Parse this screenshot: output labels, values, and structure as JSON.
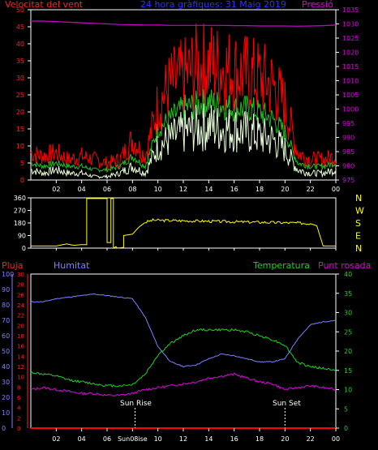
{
  "chart_data": [
    {
      "type": "line",
      "title": "24 hora gràfiques: 31 Maig 2019",
      "ylabel_left": "Velocitat del vent",
      "ylabel_right": "Pressió",
      "y_left_ticks": [
        0,
        5,
        10,
        15,
        20,
        25,
        30,
        35,
        40,
        45,
        50
      ],
      "y_right_ticks": [
        975,
        980,
        985,
        990,
        995,
        1000,
        1005,
        1010,
        1015,
        1020,
        1025,
        1030,
        1035
      ],
      "x_ticks": [
        "02",
        "04",
        "06",
        "08",
        "10",
        "12",
        "14",
        "16",
        "18",
        "20",
        "22",
        "00"
      ],
      "ylim_left": [
        0,
        50
      ],
      "ylim_right": [
        975,
        1035
      ],
      "x_hours": [
        0,
        1,
        2,
        3,
        4,
        5,
        6,
        7,
        8,
        9,
        10,
        11,
        12,
        13,
        14,
        15,
        16,
        17,
        18,
        19,
        20,
        21,
        22,
        23,
        24
      ],
      "series": [
        {
          "name": "gust",
          "color": "#ff0000",
          "values": [
            8,
            7,
            8,
            6,
            7,
            6,
            5,
            6,
            12,
            7,
            22,
            28,
            30,
            33,
            34,
            33,
            32,
            31,
            30,
            28,
            22,
            8,
            6,
            6,
            7
          ]
        },
        {
          "name": "average",
          "color": "#20c020",
          "values": [
            5,
            4,
            5,
            4,
            4,
            3,
            3,
            4,
            7,
            4,
            15,
            18,
            21,
            22,
            23,
            22,
            21,
            21,
            20,
            18,
            14,
            5,
            4,
            4,
            5
          ]
        },
        {
          "name": "speed",
          "color": "#e8ffd8",
          "values": [
            3,
            2,
            3,
            2,
            2,
            1,
            1,
            2,
            4,
            2,
            10,
            12,
            14,
            15,
            16,
            15,
            15,
            14,
            13,
            12,
            9,
            3,
            2,
            2,
            3
          ]
        },
        {
          "name": "pressure",
          "color": "#cc00cc",
          "values": [
            1031,
            1031,
            1030.8,
            1030.6,
            1030.4,
            1030.2,
            1030,
            1029.8,
            1029.7,
            1029.6,
            1029.6,
            1029.5,
            1029.5,
            1029.5,
            1029.5,
            1029.5,
            1029.4,
            1029.4,
            1029.3,
            1029.3,
            1029.3,
            1029.2,
            1029.3,
            1029.4,
            1029.6
          ]
        }
      ]
    },
    {
      "type": "line",
      "y_ticks": [
        0,
        90,
        180,
        270,
        360
      ],
      "compass_labels": [
        "N",
        "W",
        "S",
        "E",
        "N"
      ],
      "ylim": [
        0,
        360
      ],
      "x_ticks": [
        "02",
        "04",
        "06",
        "08",
        "10",
        "12",
        "14",
        "16",
        "18",
        "20",
        "22",
        "00"
      ],
      "series": [
        {
          "name": "direction",
          "color": "#ffff00",
          "x": [
            0,
            2,
            2.8,
            3.4,
            4,
            4.4,
            4.4,
            6.0,
            6.0,
            6.3,
            6.3,
            6.5,
            6.5,
            6.7,
            6.8,
            7.3,
            7.3,
            8.0,
            8.5,
            9.0,
            9.6,
            21,
            22,
            22.5,
            23,
            24
          ],
          "values": [
            15,
            15,
            30,
            20,
            25,
            25,
            355,
            355,
            40,
            40,
            355,
            355,
            0,
            10,
            0,
            5,
            90,
            100,
            150,
            185,
            200,
            180,
            175,
            160,
            15,
            15
          ]
        }
      ]
    },
    {
      "type": "line",
      "legend": [
        "Pluja",
        "Humitat",
        "Temperatura",
        "Punt rosada"
      ],
      "y_left1_ticks": [
        0,
        10,
        20,
        30,
        40,
        50,
        60,
        70,
        80,
        90,
        100
      ],
      "y_left2_ticks": [
        0,
        2,
        4,
        6,
        8,
        10,
        12,
        14,
        16,
        18,
        20,
        22,
        24,
        26,
        28,
        30
      ],
      "y_right_ticks": [
        0,
        5,
        10,
        15,
        20,
        25,
        30,
        35,
        40
      ],
      "x_ticks": [
        "02",
        "04",
        "06",
        "08",
        "10",
        "12",
        "14",
        "16",
        "18",
        "20",
        "22",
        "00"
      ],
      "sun_rise_label": "Sun Rise",
      "sun_set_label": "Sun Set",
      "x_label_extra": "Sun08ise",
      "sun_rise_hour": 8.2,
      "sun_set_hour": 20.0,
      "x_hours": [
        0,
        1,
        2,
        3,
        4,
        5,
        6,
        7,
        8,
        9,
        10,
        11,
        12,
        13,
        14,
        15,
        16,
        17,
        18,
        19,
        20,
        21,
        22,
        23,
        24
      ],
      "series": [
        {
          "name": "Humitat",
          "color": "#8080ff",
          "scale": "left1",
          "values": [
            82,
            82,
            84,
            85,
            86,
            87,
            86,
            85,
            84,
            72,
            53,
            43,
            40,
            41,
            45,
            48,
            47,
            45,
            43,
            43,
            45,
            58,
            67,
            69,
            70
          ]
        },
        {
          "name": "Temperatura",
          "color": "#20d020",
          "scale": "right",
          "values": [
            14.5,
            14,
            13.5,
            12.5,
            12,
            11.5,
            11,
            11,
            11.3,
            14,
            19,
            22,
            24,
            25.5,
            25.5,
            25.5,
            25.5,
            25,
            24,
            23,
            21.5,
            17,
            16,
            15.5,
            15
          ]
        },
        {
          "name": "Punt rosada",
          "color": "#e000e0",
          "scale": "right",
          "values": [
            10,
            10.5,
            10,
            9.5,
            9,
            9,
            8.5,
            8.5,
            9,
            10,
            10.5,
            11,
            11.5,
            12,
            13,
            13.5,
            14,
            13,
            12,
            11.5,
            10,
            10.5,
            11,
            10.5,
            10
          ]
        },
        {
          "name": "Pluja",
          "color": "#ff0000",
          "scale": "left1",
          "values": [
            0,
            0,
            0,
            0,
            0,
            0,
            0,
            0,
            0,
            0,
            0,
            0,
            0,
            0,
            0,
            0,
            0,
            0,
            0,
            0,
            0,
            0,
            0,
            0,
            0
          ]
        }
      ]
    }
  ]
}
